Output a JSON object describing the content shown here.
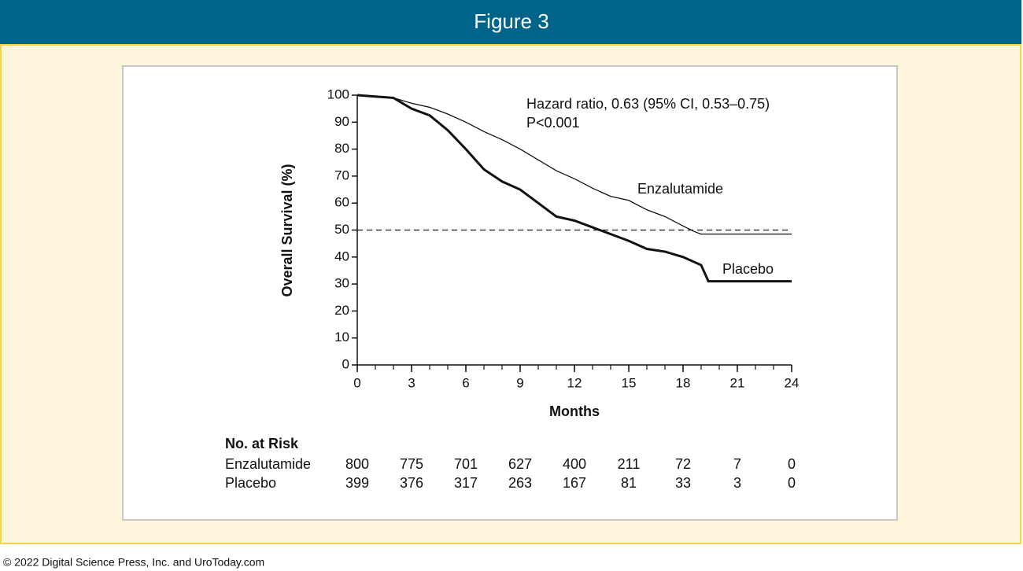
{
  "header": {
    "title": "Figure 3"
  },
  "footer": "© 2022 Digital Science Press, Inc. and UroToday.com",
  "chart_data": {
    "type": "line",
    "xlabel": "Months",
    "ylabel": "Overall Survival (%)",
    "annotations": [
      "Hazard ratio, 0.63 (95% CI, 0.53–0.75)",
      "P<0.001"
    ],
    "xlim": [
      0,
      24
    ],
    "ylim": [
      0,
      100
    ],
    "xticks": [
      0,
      3,
      6,
      9,
      12,
      15,
      18,
      21,
      24
    ],
    "x_minor_ticks": [
      0,
      1,
      2,
      3,
      4,
      5,
      6,
      7,
      8,
      9,
      10,
      11,
      12,
      13,
      14,
      15,
      16,
      17,
      18,
      19,
      20,
      21,
      22,
      23,
      24
    ],
    "yticks": [
      0,
      10,
      20,
      30,
      40,
      50,
      60,
      70,
      80,
      90,
      100
    ],
    "reference_line": 50,
    "series": [
      {
        "name": "Enzalutamide",
        "color": "#111111",
        "line_width": 1.3,
        "x": [
          0,
          1,
          2,
          3,
          4,
          5,
          6,
          7,
          8,
          9,
          10,
          11,
          12,
          13,
          14,
          15,
          16,
          17,
          18,
          18.6,
          19,
          24
        ],
        "values": [
          100,
          99.5,
          99,
          97,
          95.5,
          93,
          90,
          86.5,
          83.5,
          80,
          76,
          72,
          69,
          65.5,
          62.5,
          61,
          57.5,
          55,
          51.5,
          49.5,
          48.5,
          48.5
        ]
      },
      {
        "name": "Placebo",
        "color": "#111111",
        "line_width": 3,
        "x": [
          0,
          1,
          2,
          3,
          4,
          5,
          6,
          7,
          8,
          9,
          10,
          11,
          12,
          13,
          14,
          15,
          16,
          17,
          18,
          19,
          19.4,
          24
        ],
        "values": [
          100,
          99.5,
          99,
          95,
          92.5,
          87,
          80,
          72.5,
          68,
          65,
          60,
          55,
          53.5,
          51,
          48.5,
          46,
          43,
          42,
          40,
          37,
          31,
          31
        ]
      }
    ],
    "risk_table": {
      "title": "No. at Risk",
      "rows": [
        {
          "series": 0,
          "values": [
            800,
            775,
            701,
            627,
            400,
            211,
            72,
            7,
            0
          ]
        },
        {
          "series": 1,
          "values": [
            399,
            376,
            317,
            263,
            167,
            81,
            33,
            3,
            0
          ]
        }
      ]
    }
  }
}
